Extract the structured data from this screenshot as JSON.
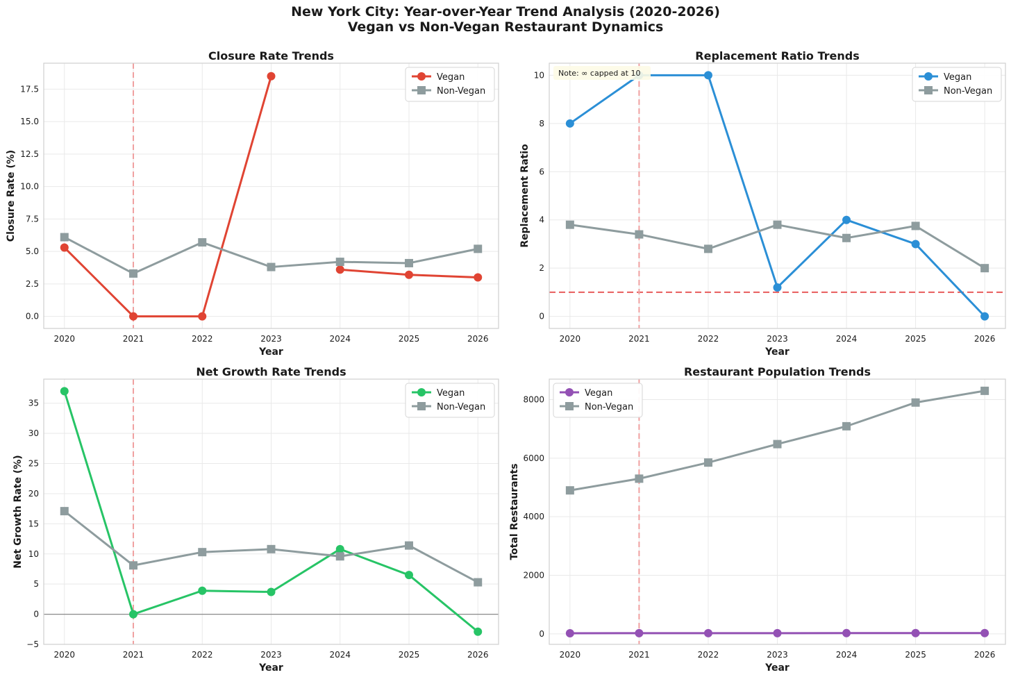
{
  "suptitle": {
    "line1": "New York City: Year-over-Year Trend Analysis (2020-2026)",
    "line2": "Vegan vs Non-Vegan Restaurant Dynamics"
  },
  "colors": {
    "nonvegan": "#8e9c9e",
    "grid": "#e9e9e9",
    "axis_frame": "#cfcfcf",
    "refline": "#f0a0a0",
    "threshold": "#e85c5c"
  },
  "chart_data": [
    {
      "id": "closure",
      "type": "line",
      "title": "Closure Rate Trends",
      "xlabel": "Year",
      "ylabel": "Closure Rate (%)",
      "x": [
        2020,
        2021,
        2022,
        2023,
        2024,
        2025,
        2026
      ],
      "xlim": [
        2019.7,
        2026.3
      ],
      "ylim": [
        -0.93,
        19.5
      ],
      "yticks": [
        0,
        2.5,
        5,
        7.5,
        10,
        12.5,
        15,
        17.5
      ],
      "ytick_labels": [
        "0.0",
        "2.5",
        "5.0",
        "7.5",
        "10.0",
        "12.5",
        "15.0",
        "17.5"
      ],
      "vline": 2021,
      "legend_position": "upper-right",
      "series": [
        {
          "name": "Vegan",
          "color": "#e04433",
          "marker": "circle",
          "values": [
            5.3,
            0,
            0,
            18.5,
            3.6,
            3.2,
            3.0
          ],
          "gaps": [
            3
          ]
        },
        {
          "name": "Non-Vegan",
          "color": "#8e9c9e",
          "marker": "square",
          "values": [
            6.1,
            3.3,
            5.7,
            3.8,
            4.2,
            4.1,
            5.2
          ],
          "gaps": []
        }
      ]
    },
    {
      "id": "replacement",
      "type": "line",
      "title": "Replacement Ratio Trends",
      "xlabel": "Year",
      "ylabel": "Replacement Ratio",
      "x": [
        2020,
        2021,
        2022,
        2023,
        2024,
        2025,
        2026
      ],
      "xlim": [
        2019.7,
        2026.3
      ],
      "ylim": [
        -0.5,
        10.5
      ],
      "yticks": [
        0,
        2,
        4,
        6,
        8,
        10
      ],
      "ytick_labels": [
        "0",
        "2",
        "4",
        "6",
        "8",
        "10"
      ],
      "vline": 2021,
      "hline": 1,
      "note": "Note: ∞ capped at 10",
      "legend_position": "upper-right",
      "series": [
        {
          "name": "Vegan",
          "color": "#2b8fd6",
          "marker": "circle",
          "values": [
            8,
            10,
            10,
            1.2,
            4,
            3,
            0
          ],
          "gaps": []
        },
        {
          "name": "Non-Vegan",
          "color": "#8e9c9e",
          "marker": "square",
          "values": [
            3.8,
            3.4,
            2.8,
            3.8,
            3.25,
            3.75,
            2.0
          ],
          "gaps": []
        }
      ]
    },
    {
      "id": "netgrowth",
      "type": "line",
      "title": "Net Growth Rate Trends",
      "xlabel": "Year",
      "ylabel": "Net Growth Rate (%)",
      "x": [
        2020,
        2021,
        2022,
        2023,
        2024,
        2025,
        2026
      ],
      "xlim": [
        2019.7,
        2026.3
      ],
      "ylim": [
        -5,
        39
      ],
      "yticks": [
        -5,
        0,
        5,
        10,
        15,
        20,
        25,
        30,
        35
      ],
      "ytick_labels": [
        "−5",
        "0",
        "5",
        "10",
        "15",
        "20",
        "25",
        "30",
        "35"
      ],
      "vline": 2021,
      "zeroline": 0,
      "legend_position": "upper-right",
      "series": [
        {
          "name": "Vegan",
          "color": "#27c466",
          "marker": "circle",
          "values": [
            37,
            0,
            3.9,
            3.7,
            10.8,
            6.5,
            -2.9
          ],
          "gaps": []
        },
        {
          "name": "Non-Vegan",
          "color": "#8e9c9e",
          "marker": "square",
          "values": [
            17.1,
            8.1,
            10.3,
            10.8,
            9.6,
            11.4,
            5.3
          ],
          "gaps": []
        }
      ]
    },
    {
      "id": "population",
      "type": "line",
      "title": "Restaurant Population Trends",
      "xlabel": "Year",
      "ylabel": "Total Restaurants",
      "x": [
        2020,
        2021,
        2022,
        2023,
        2024,
        2025,
        2026
      ],
      "xlim": [
        2019.7,
        2026.3
      ],
      "ylim": [
        -360,
        8700
      ],
      "yticks": [
        0,
        2000,
        4000,
        6000,
        8000
      ],
      "ytick_labels": [
        "0",
        "2000",
        "4000",
        "6000",
        "8000"
      ],
      "vline": 2021,
      "legend_position": "upper-left",
      "series": [
        {
          "name": "Vegan",
          "color": "#9351b4",
          "marker": "circle",
          "values": [
            20,
            22,
            22,
            23,
            24,
            26,
            26
          ],
          "gaps": []
        },
        {
          "name": "Non-Vegan",
          "color": "#8e9c9e",
          "marker": "square",
          "values": [
            4900,
            5300,
            5850,
            6480,
            7090,
            7900,
            8300
          ],
          "gaps": []
        }
      ]
    }
  ]
}
